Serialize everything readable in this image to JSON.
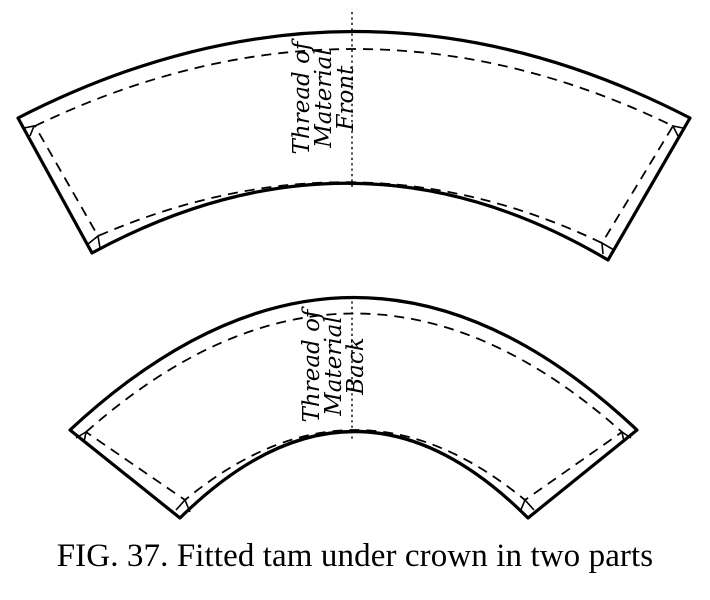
{
  "diagram": {
    "front_piece": {
      "lines": [
        "Thread of",
        "Material",
        "Front"
      ]
    },
    "back_piece": {
      "lines": [
        "Thread of",
        "Material",
        "Back"
      ]
    }
  },
  "caption": {
    "figure_number": "FIG. 37.",
    "text": "Fitted tam under crown in two parts"
  }
}
